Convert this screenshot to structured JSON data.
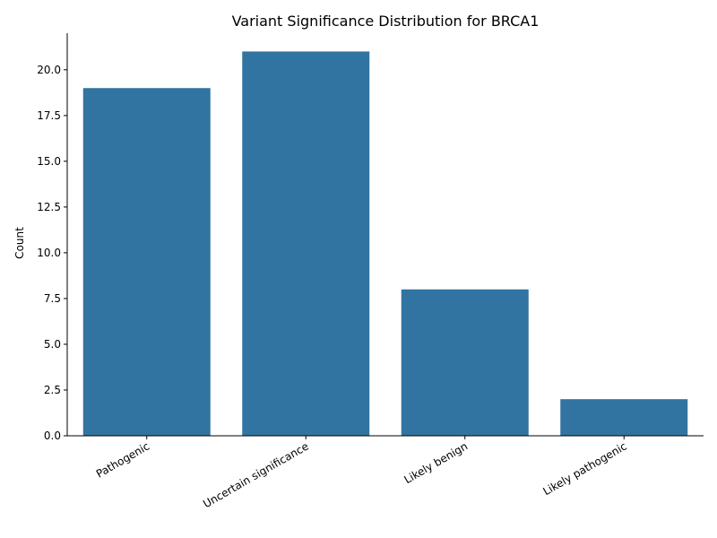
{
  "chart_data": {
    "type": "bar",
    "title": "Variant Significance Distribution for BRCA1",
    "xlabel": "",
    "ylabel": "Count",
    "categories": [
      "Pathogenic",
      "Uncertain significance",
      "Likely benign",
      "Likely pathogenic"
    ],
    "values": [
      19,
      21,
      8,
      2
    ],
    "ylim": [
      0,
      22
    ],
    "yticks": [
      "0.0",
      "2.5",
      "5.0",
      "7.5",
      "10.0",
      "12.5",
      "15.0",
      "17.5",
      "20.0"
    ],
    "ytick_values": [
      0,
      2.5,
      5,
      7.5,
      10,
      12.5,
      15,
      17.5,
      20
    ],
    "bar_color": "#3274a1",
    "grid": false,
    "legend": "none"
  }
}
